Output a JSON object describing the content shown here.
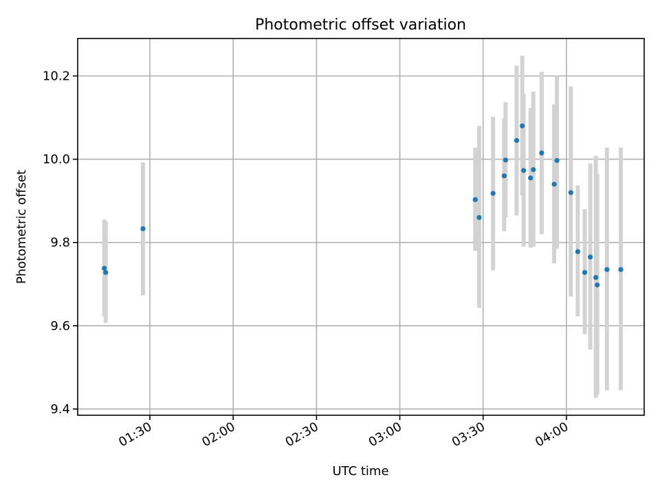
{
  "chart_data": {
    "type": "scatter",
    "title": "Photometric offset variation",
    "xlabel": "UTC time",
    "ylabel": "Photometric offset",
    "xlim": [
      "01:04",
      "04:28"
    ],
    "ylim": [
      9.385,
      10.29
    ],
    "grid": true,
    "x_ticks": [
      "01:30",
      "02:00",
      "02:30",
      "03:00",
      "03:30",
      "04:00"
    ],
    "y_ticks": [
      "9.4",
      "9.6",
      "9.8",
      "10.0",
      "10.2"
    ],
    "series": [
      {
        "color": "#1f77b4",
        "error_color": "#d3d3d3",
        "points": [
          {
            "x": "01:13:35",
            "y": 9.738,
            "err_low": 9.623,
            "err_high": 9.855
          },
          {
            "x": "01:14:05",
            "y": 9.728,
            "err_low": 9.607,
            "err_high": 9.85
          },
          {
            "x": "01:27:30",
            "y": 9.833,
            "err_low": 9.673,
            "err_high": 9.993
          },
          {
            "x": "03:27:10",
            "y": 9.903,
            "err_low": 9.78,
            "err_high": 10.028
          },
          {
            "x": "03:28:35",
            "y": 9.86,
            "err_low": 9.643,
            "err_high": 10.08
          },
          {
            "x": "03:33:35",
            "y": 9.918,
            "err_low": 9.733,
            "err_high": 10.102
          },
          {
            "x": "03:37:35",
            "y": 9.96,
            "err_low": 9.827,
            "err_high": 10.098
          },
          {
            "x": "03:38:05",
            "y": 9.998,
            "err_low": 9.86,
            "err_high": 10.137
          },
          {
            "x": "03:42:05",
            "y": 10.045,
            "err_low": 9.865,
            "err_high": 10.225
          },
          {
            "x": "03:44:05",
            "y": 10.08,
            "err_low": 9.913,
            "err_high": 10.249
          },
          {
            "x": "03:44:35",
            "y": 9.973,
            "err_low": 9.79,
            "err_high": 10.157
          },
          {
            "x": "03:47:05",
            "y": 9.955,
            "err_low": 9.788,
            "err_high": 10.123
          },
          {
            "x": "03:48:05",
            "y": 9.975,
            "err_low": 9.79,
            "err_high": 10.162
          },
          {
            "x": "03:51:05",
            "y": 10.015,
            "err_low": 9.82,
            "err_high": 10.21
          },
          {
            "x": "03:55:35",
            "y": 9.94,
            "err_low": 9.75,
            "err_high": 10.132
          },
          {
            "x": "03:56:35",
            "y": 9.997,
            "err_low": 9.785,
            "err_high": 10.2
          },
          {
            "x": "04:01:35",
            "y": 9.92,
            "err_low": 9.67,
            "err_high": 10.175
          },
          {
            "x": "04:04:05",
            "y": 9.778,
            "err_low": 9.623,
            "err_high": 9.937
          },
          {
            "x": "04:06:35",
            "y": 9.728,
            "err_low": 9.58,
            "err_high": 9.88
          },
          {
            "x": "04:08:35",
            "y": 9.765,
            "err_low": 9.543,
            "err_high": 9.99
          },
          {
            "x": "04:10:35",
            "y": 9.716,
            "err_low": 9.427,
            "err_high": 10.008
          },
          {
            "x": "04:11:05",
            "y": 9.698,
            "err_low": 9.435,
            "err_high": 9.965
          },
          {
            "x": "04:14:35",
            "y": 9.735,
            "err_low": 9.445,
            "err_high": 10.028
          },
          {
            "x": "04:19:35",
            "y": 9.735,
            "err_low": 9.445,
            "err_high": 10.028
          }
        ]
      }
    ]
  }
}
